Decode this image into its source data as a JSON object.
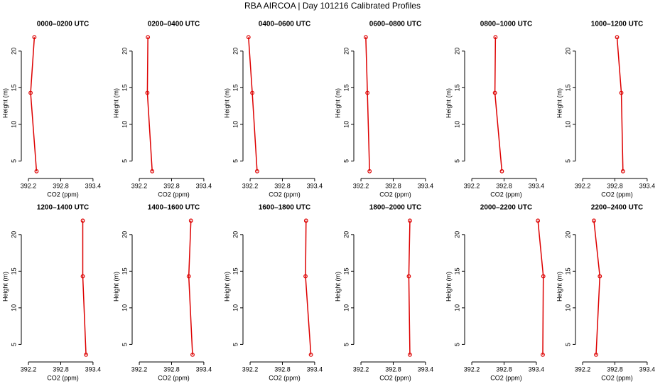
{
  "title": "RBA AIRCOA | Day 101216  Calibrated Profiles",
  "chart_data": [
    {
      "type": "line",
      "title": "0000–0200 UTC",
      "x_label": "CO2 (ppm)",
      "y_label": "Height (m)",
      "color": "#dd0000",
      "x": [
        392.35,
        392.24,
        392.31
      ],
      "y": [
        3.6,
        14.3,
        21.9
      ],
      "xlim": [
        392.12,
        393.56
      ],
      "ylim": [
        3,
        22.8
      ],
      "xticks": [
        392.2,
        392.8,
        393.4
      ],
      "yticks": [
        5,
        10,
        15,
        20
      ]
    },
    {
      "type": "line",
      "title": "0200–0400 UTC",
      "x_label": "CO2 (ppm)",
      "y_label": "Height (m)",
      "color": "#dd0000",
      "x": [
        392.44,
        392.35,
        392.36
      ],
      "y": [
        3.6,
        14.3,
        21.9
      ],
      "xlim": [
        392.12,
        393.56
      ],
      "ylim": [
        3,
        22.8
      ],
      "xticks": [
        392.2,
        392.8,
        393.4
      ],
      "yticks": [
        5,
        10,
        15,
        20
      ]
    },
    {
      "type": "line",
      "title": "0400–0600 UTC",
      "x_label": "CO2 (ppm)",
      "y_label": "Height (m)",
      "color": "#dd0000",
      "x": [
        392.33,
        392.24,
        392.17
      ],
      "y": [
        3.6,
        14.3,
        21.9
      ],
      "xlim": [
        392.12,
        393.56
      ],
      "ylim": [
        3,
        22.8
      ],
      "xticks": [
        392.2,
        392.8,
        393.4
      ],
      "yticks": [
        5,
        10,
        15,
        20
      ]
    },
    {
      "type": "line",
      "title": "0600–0800 UTC",
      "x_label": "CO2 (ppm)",
      "y_label": "Height (m)",
      "color": "#dd0000",
      "x": [
        392.36,
        392.32,
        392.29
      ],
      "y": [
        3.6,
        14.3,
        21.9
      ],
      "xlim": [
        392.12,
        393.56
      ],
      "ylim": [
        3,
        22.8
      ],
      "xticks": [
        392.2,
        392.8,
        393.4
      ],
      "yticks": [
        5,
        10,
        15,
        20
      ]
    },
    {
      "type": "line",
      "title": "0800–1000 UTC",
      "x_label": "CO2 (ppm)",
      "y_label": "Height (m)",
      "color": "#dd0000",
      "x": [
        392.76,
        392.63,
        392.64
      ],
      "y": [
        3.6,
        14.3,
        21.9
      ],
      "xlim": [
        392.12,
        393.56
      ],
      "ylim": [
        3,
        22.8
      ],
      "xticks": [
        392.2,
        392.8,
        393.4
      ],
      "yticks": [
        5,
        10,
        15,
        20
      ]
    },
    {
      "type": "line",
      "title": "1000–1200 UTC",
      "x_label": "CO2 (ppm)",
      "y_label": "Height (m)",
      "color": "#dd0000",
      "x": [
        392.95,
        392.92,
        392.84
      ],
      "y": [
        3.6,
        14.3,
        21.9
      ],
      "xlim": [
        392.12,
        393.56
      ],
      "ylim": [
        3,
        22.8
      ],
      "xticks": [
        392.2,
        392.8,
        393.4
      ],
      "yticks": [
        5,
        10,
        15,
        20
      ]
    },
    {
      "type": "line",
      "title": "1200–1400 UTC",
      "x_label": "CO2 (ppm)",
      "y_label": "Height (m)",
      "color": "#dd0000",
      "x": [
        393.27,
        393.21,
        393.21
      ],
      "y": [
        3.6,
        14.3,
        21.9
      ],
      "xlim": [
        392.12,
        393.56
      ],
      "ylim": [
        3,
        22.8
      ],
      "xticks": [
        392.2,
        392.8,
        393.4
      ],
      "yticks": [
        5,
        10,
        15,
        20
      ]
    },
    {
      "type": "line",
      "title": "1400–1600 UTC",
      "x_label": "CO2 (ppm)",
      "y_label": "Height (m)",
      "color": "#dd0000",
      "x": [
        393.19,
        393.12,
        393.16
      ],
      "y": [
        3.6,
        14.3,
        21.9
      ],
      "xlim": [
        392.12,
        393.56
      ],
      "ylim": [
        3,
        22.8
      ],
      "xticks": [
        392.2,
        392.8,
        393.4
      ],
      "yticks": [
        5,
        10,
        15,
        20
      ]
    },
    {
      "type": "line",
      "title": "1600–1800 UTC",
      "x_label": "CO2 (ppm)",
      "y_label": "Height (m)",
      "color": "#dd0000",
      "x": [
        393.33,
        393.23,
        393.24
      ],
      "y": [
        3.6,
        14.3,
        21.9
      ],
      "xlim": [
        392.12,
        393.56
      ],
      "ylim": [
        3,
        22.8
      ],
      "xticks": [
        392.2,
        392.8,
        393.4
      ],
      "yticks": [
        5,
        10,
        15,
        20
      ]
    },
    {
      "type": "line",
      "title": "1800–2000 UTC",
      "x_label": "CO2 (ppm)",
      "y_label": "Height (m)",
      "color": "#dd0000",
      "x": [
        393.11,
        393.09,
        393.11
      ],
      "y": [
        3.6,
        14.3,
        21.9
      ],
      "xlim": [
        392.12,
        393.56
      ],
      "ylim": [
        3,
        22.8
      ],
      "xticks": [
        392.2,
        392.8,
        393.4
      ],
      "yticks": [
        5,
        10,
        15,
        20
      ]
    },
    {
      "type": "line",
      "title": "2000–2200 UTC",
      "x_label": "CO2 (ppm)",
      "y_label": "Height (m)",
      "color": "#dd0000",
      "x": [
        393.52,
        393.53,
        393.43
      ],
      "y": [
        3.6,
        14.3,
        21.9
      ],
      "xlim": [
        392.12,
        393.56
      ],
      "ylim": [
        3,
        22.8
      ],
      "xticks": [
        392.2,
        392.8,
        393.4
      ],
      "yticks": [
        5,
        10,
        15,
        20
      ]
    },
    {
      "type": "line",
      "title": "2200–2400 UTC",
      "x_label": "CO2 (ppm)",
      "y_label": "Height (m)",
      "color": "#dd0000",
      "x": [
        392.45,
        392.52,
        392.41
      ],
      "y": [
        3.6,
        14.3,
        21.9
      ],
      "xlim": [
        392.12,
        393.56
      ],
      "ylim": [
        3,
        22.8
      ],
      "xticks": [
        392.2,
        392.8,
        393.4
      ],
      "yticks": [
        5,
        10,
        15,
        20
      ]
    }
  ]
}
